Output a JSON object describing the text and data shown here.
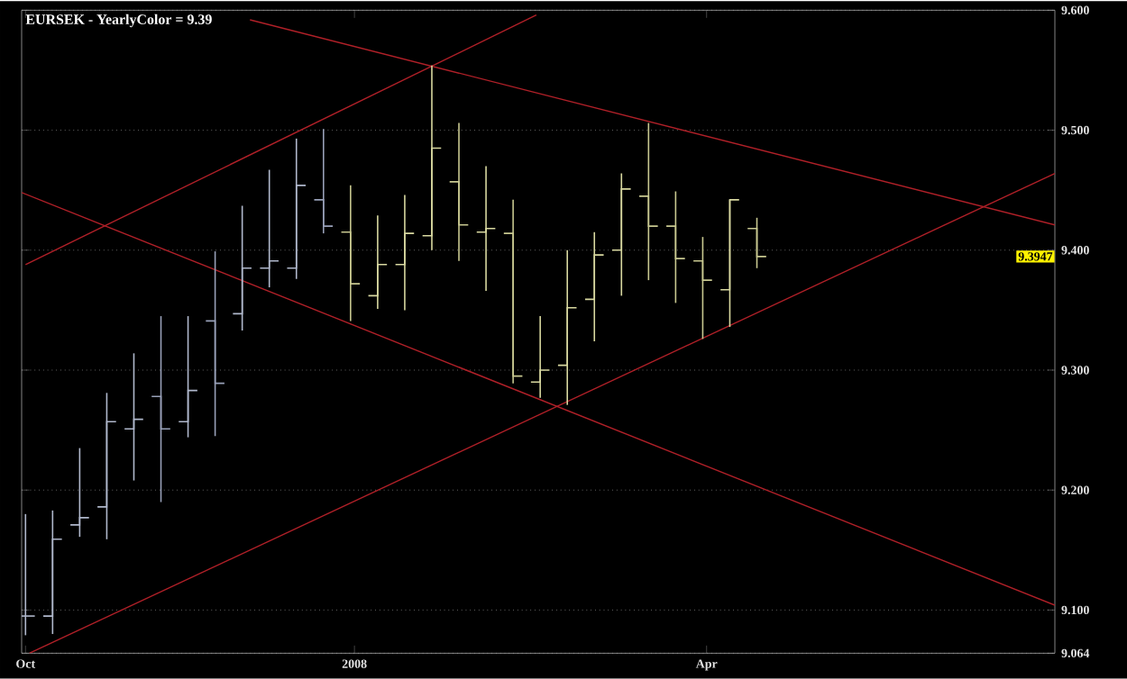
{
  "chart_data": {
    "type": "candlestick",
    "title": "EURSEK - YearlyColor = 9.39",
    "x": [
      "2007-10-08",
      "2007-10-15",
      "2007-10-22",
      "2007-10-29",
      "2007-11-05",
      "2007-11-12",
      "2007-11-19",
      "2007-11-26",
      "2007-12-03",
      "2007-12-10",
      "2007-12-17",
      "2007-12-24",
      "2007-12-31",
      "2008-01-07",
      "2008-01-14",
      "2008-01-21",
      "2008-01-28",
      "2008-02-04",
      "2008-02-11",
      "2008-02-18",
      "2008-02-25",
      "2008-03-03",
      "2008-03-10",
      "2008-03-17",
      "2008-03-24",
      "2008-03-31",
      "2008-04-07",
      "2008-04-14"
    ],
    "ohlc": [
      [
        9.095,
        9.18,
        9.079,
        9.095
      ],
      [
        9.095,
        9.183,
        9.08,
        9.159
      ],
      [
        9.171,
        9.235,
        9.161,
        9.177
      ],
      [
        9.186,
        9.281,
        9.159,
        9.257
      ],
      [
        9.251,
        9.314,
        9.208,
        9.259
      ],
      [
        9.278,
        9.345,
        9.19,
        9.251
      ],
      [
        9.257,
        9.345,
        9.244,
        9.283
      ],
      [
        9.341,
        9.399,
        9.245,
        9.289
      ],
      [
        9.347,
        9.437,
        9.333,
        9.385
      ],
      [
        9.385,
        9.467,
        9.369,
        9.391
      ],
      [
        9.385,
        9.493,
        9.376,
        9.454
      ],
      [
        9.442,
        9.501,
        9.414,
        9.42
      ],
      [
        9.415,
        9.454,
        9.341,
        9.372
      ],
      [
        9.362,
        9.429,
        9.351,
        9.388
      ],
      [
        9.388,
        9.446,
        9.35,
        9.414
      ],
      [
        9.412,
        9.554,
        9.4,
        9.485
      ],
      [
        9.457,
        9.506,
        9.391,
        9.421
      ],
      [
        9.415,
        9.47,
        9.366,
        9.418
      ],
      [
        9.414,
        9.442,
        9.289,
        9.295
      ],
      [
        9.29,
        9.345,
        9.277,
        9.3
      ],
      [
        9.304,
        9.4,
        9.271,
        9.352
      ],
      [
        9.359,
        9.415,
        9.324,
        9.396
      ],
      [
        9.4,
        9.464,
        9.362,
        9.451
      ],
      [
        9.445,
        9.506,
        9.375,
        9.42
      ],
      [
        9.42,
        9.449,
        9.356,
        9.393
      ],
      [
        9.391,
        9.411,
        9.326,
        9.375
      ],
      [
        9.367,
        9.442,
        9.336,
        9.442
      ],
      [
        9.418,
        9.427,
        9.385,
        9.3947
      ]
    ],
    "colors": [
      "#b0b8cc",
      "#b0b8cc",
      "#b0b8cc",
      "#b0b8cc",
      "#b0b8cc",
      "#98a0b8",
      "#b0b8cc",
      "#98a0b8",
      "#b0b8cc",
      "#b0b8cc",
      "#b0b8cc",
      "#98a0b8",
      "#c8c890",
      "#d8d8a0",
      "#d8d8a0",
      "#d8d8a0",
      "#c8c890",
      "#d8d8a0",
      "#c8c890",
      "#d8d8a0",
      "#d8d8a0",
      "#d8d8a0",
      "#d8d8a0",
      "#c8c890",
      "#c8c890",
      "#c8c890",
      "#d8d8a0",
      "#c8c890"
    ],
    "series": [
      {
        "type": "line",
        "color": "#b02028",
        "x": [
          "2007-10-08",
          "2008-02-17"
        ],
        "values": [
          9.388,
          9.596
        ]
      },
      {
        "type": "line",
        "color": "#b02028",
        "x": [
          "2007-12-05",
          "2008-06-30"
        ],
        "values": [
          9.592,
          9.421
        ]
      },
      {
        "type": "line",
        "color": "#b02028",
        "x": [
          "2007-10-07",
          "2008-06-30"
        ],
        "values": [
          9.448,
          9.104
        ]
      },
      {
        "type": "line",
        "color": "#b02028",
        "x": [
          "2007-10-09",
          "2008-06-30"
        ],
        "values": [
          9.064,
          9.464
        ]
      }
    ],
    "xlim": [
      "2007-10-07",
      "2008-06-30"
    ],
    "xticks": [
      {
        "value": "2007-10-08",
        "label": "Oct"
      },
      {
        "value": "2008-01-01",
        "label": "2008"
      },
      {
        "value": "2008-04-01",
        "label": "Apr"
      }
    ],
    "ylim": [
      9.064,
      9.6
    ],
    "yticks": [
      {
        "value": 9.064,
        "label": "9.064"
      },
      {
        "value": 9.1,
        "label": "9.100"
      },
      {
        "value": 9.2,
        "label": "9.200"
      },
      {
        "value": 9.3,
        "label": "9.300"
      },
      {
        "value": 9.4,
        "label": "9.400"
      },
      {
        "value": 9.5,
        "label": "9.500"
      },
      {
        "value": 9.6,
        "label": "9.600"
      }
    ],
    "grid": "y",
    "annotations": [
      {
        "text": "9.3947",
        "y": 9.3947
      }
    ]
  }
}
